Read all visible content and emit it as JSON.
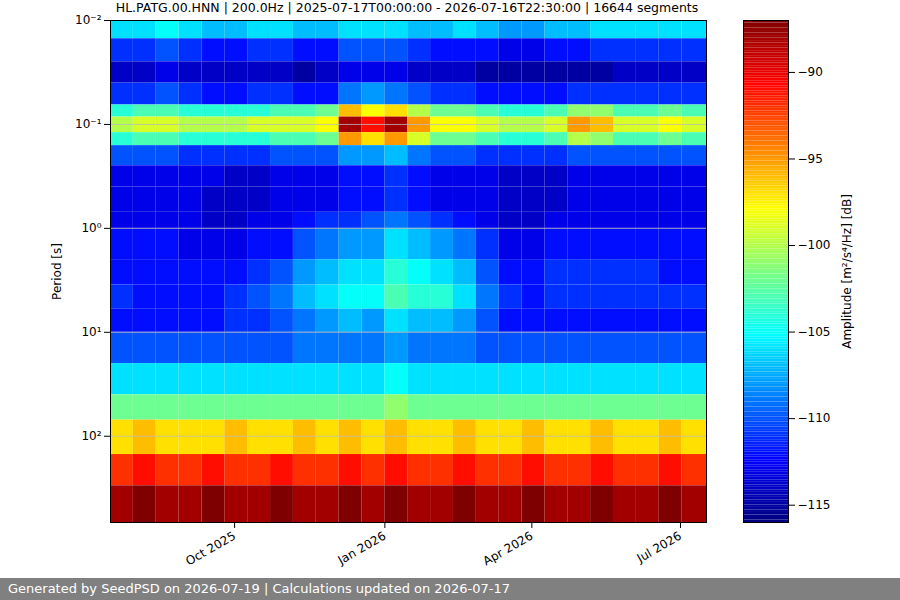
{
  "chart_data": {
    "type": "heatmap",
    "title": "HL.PATG.00.HNN | 200.0Hz | 2025-07-17T00:00:00 - 2026-07-16T22:30:00 | 16644 segments",
    "caption": "Generated by SeedPSD on 2026-07-19 | Calculations updated on 2026-07-17",
    "y_label": "Period [s]",
    "log": "y",
    "grid": "y",
    "xlim": [
      "2025-07-17T00:00:00",
      "2026-07-16T22:30:00"
    ],
    "xticks": [
      {
        "value": "2025-10-01",
        "label": "Oct 2025"
      },
      {
        "value": "2026-01-01",
        "label": "Jan 2026"
      },
      {
        "value": "2026-04-01",
        "label": "Apr 2026"
      },
      {
        "value": "2026-07-01",
        "label": "Jul 2026"
      }
    ],
    "ylim": [
      0.01,
      676
    ],
    "yticks": [
      {
        "value": 0.01,
        "label": "10⁻²"
      },
      {
        "value": 0.1,
        "label": "10⁻¹"
      },
      {
        "value": 1,
        "label": "10⁰"
      },
      {
        "value": 10,
        "label": "10¹"
      },
      {
        "value": 100,
        "label": "10²"
      }
    ],
    "x_bins": [
      "2025-07-17T00:00:00",
      "2025-07-31T00:00:00",
      "2025-08-14T00:00:00",
      "2025-08-28T00:00:00",
      "2025-09-11T00:00:00",
      "2025-09-25T00:00:00",
      "2025-10-09T00:00:00",
      "2025-10-23T00:00:00",
      "2025-11-06T00:00:00",
      "2025-11-20T00:00:00",
      "2025-12-04T00:00:00",
      "2025-12-18T00:00:00",
      "2026-01-01T00:00:00",
      "2026-01-15T00:00:00",
      "2026-01-29T00:00:00",
      "2026-02-12T00:00:00",
      "2026-02-26T00:00:00",
      "2026-03-12T00:00:00",
      "2026-03-26T00:00:00",
      "2026-04-09T00:00:00",
      "2026-04-23T00:00:00",
      "2026-05-07T00:00:00",
      "2026-05-21T00:00:00",
      "2026-06-04T00:00:00",
      "2026-06-18T00:00:00",
      "2026-07-02T00:00:00",
      "2026-07-16T22:30:00"
    ],
    "y_bins": [
      0.01,
      0.015,
      0.025,
      0.04,
      0.065,
      0.085,
      0.12,
      0.16,
      0.25,
      0.4,
      0.7,
      1,
      2,
      3.5,
      6,
      10,
      20,
      40,
      70,
      150,
      300,
      676
    ],
    "values": [
      [
        -106,
        -106,
        -105,
        -106,
        -107,
        -107,
        -106,
        -106,
        -107,
        -107,
        -106,
        -106,
        -106,
        -107,
        -107,
        -106,
        -107,
        -108,
        -108,
        -107,
        -107,
        -106,
        -106,
        -106,
        -106,
        -106
      ],
      [
        -111,
        -111,
        -110,
        -111,
        -112,
        -112,
        -111,
        -111,
        -112,
        -112,
        -110,
        -110,
        -110,
        -111,
        -112,
        -112,
        -112,
        -113,
        -113,
        -112,
        -112,
        -111,
        -111,
        -111,
        -111,
        -111
      ],
      [
        -114,
        -114,
        -113,
        -114,
        -114,
        -114,
        -114,
        -114,
        -115,
        -114,
        -113,
        -113,
        -113,
        -114,
        -114,
        -114,
        -115,
        -115,
        -115,
        -115,
        -115,
        -115,
        -114,
        -114,
        -114,
        -114
      ],
      [
        -111,
        -111,
        -110,
        -111,
        -112,
        -112,
        -111,
        -111,
        -112,
        -112,
        -109,
        -108,
        -109,
        -110,
        -111,
        -111,
        -112,
        -112,
        -112,
        -112,
        -111,
        -111,
        -111,
        -111,
        -111,
        -111
      ],
      [
        -104,
        -103,
        -103,
        -104,
        -104,
        -104,
        -104,
        -103,
        -103,
        -102,
        -96,
        -98,
        -97,
        -100,
        -102,
        -102,
        -103,
        -104,
        -104,
        -103,
        -101,
        -101,
        -103,
        -103,
        -102,
        -103
      ],
      [
        -100,
        -99,
        -99,
        -100,
        -100,
        -100,
        -99,
        -99,
        -99,
        -98,
        -88,
        -91,
        -88,
        -95,
        -98,
        -98,
        -99,
        -100,
        -100,
        -99,
        -95,
        -96,
        -99,
        -99,
        -98,
        -99
      ],
      [
        -104,
        -103,
        -103,
        -104,
        -104,
        -104,
        -104,
        -103,
        -103,
        -102,
        -95,
        -97,
        -95,
        -99,
        -102,
        -102,
        -103,
        -104,
        -104,
        -103,
        -100,
        -101,
        -103,
        -103,
        -102,
        -103
      ],
      [
        -110,
        -110,
        -110,
        -111,
        -111,
        -111,
        -111,
        -110,
        -110,
        -110,
        -108,
        -108,
        -107,
        -109,
        -110,
        -110,
        -111,
        -111,
        -111,
        -111,
        -110,
        -110,
        -110,
        -110,
        -110,
        -110
      ],
      [
        -113,
        -113,
        -113,
        -113,
        -113,
        -114,
        -114,
        -113,
        -113,
        -113,
        -112,
        -112,
        -111,
        -112,
        -113,
        -113,
        -113,
        -114,
        -114,
        -114,
        -113,
        -113,
        -113,
        -113,
        -113,
        -113
      ],
      [
        -113,
        -113,
        -113,
        -113,
        -114,
        -114,
        -114,
        -113,
        -113,
        -113,
        -112,
        -112,
        -111,
        -112,
        -113,
        -113,
        -113,
        -114,
        -114,
        -114,
        -113,
        -113,
        -113,
        -113,
        -113,
        -113
      ],
      [
        -113,
        -113,
        -113,
        -113,
        -114,
        -114,
        -113,
        -113,
        -112,
        -111,
        -111,
        -110,
        -109,
        -110,
        -111,
        -112,
        -113,
        -114,
        -114,
        -113,
        -113,
        -113,
        -113,
        -113,
        -113,
        -113
      ],
      [
        -112,
        -112,
        -112,
        -113,
        -113,
        -113,
        -112,
        -112,
        -110,
        -109,
        -108,
        -108,
        -106,
        -107,
        -108,
        -109,
        -111,
        -113,
        -113,
        -112,
        -112,
        -112,
        -112,
        -112,
        -112,
        -112
      ],
      [
        -112,
        -112,
        -112,
        -112,
        -112,
        -112,
        -111,
        -110,
        -108,
        -107,
        -106,
        -106,
        -104,
        -105,
        -106,
        -107,
        -110,
        -112,
        -112,
        -111,
        -111,
        -111,
        -111,
        -111,
        -112,
        -112
      ],
      [
        -111,
        -112,
        -112,
        -112,
        -112,
        -111,
        -110,
        -109,
        -107,
        -106,
        -105,
        -105,
        -103,
        -104,
        -104,
        -106,
        -109,
        -111,
        -112,
        -111,
        -111,
        -111,
        -111,
        -111,
        -111,
        -111
      ],
      [
        -112,
        -112,
        -112,
        -112,
        -112,
        -111,
        -111,
        -110,
        -109,
        -108,
        -107,
        -108,
        -106,
        -107,
        -107,
        -108,
        -110,
        -112,
        -112,
        -112,
        -112,
        -112,
        -112,
        -112,
        -112,
        -112
      ],
      [
        -110,
        -110,
        -110,
        -110,
        -110,
        -110,
        -110,
        -110,
        -109,
        -109,
        -109,
        -109,
        -108,
        -109,
        -109,
        -109,
        -110,
        -110,
        -110,
        -110,
        -110,
        -110,
        -110,
        -110,
        -110,
        -110
      ],
      [
        -106,
        -106,
        -106,
        -106,
        -106,
        -106,
        -106,
        -106,
        -106,
        -106,
        -106,
        -106,
        -105,
        -106,
        -106,
        -106,
        -106,
        -106,
        -106,
        -106,
        -106,
        -106,
        -106,
        -106,
        -106,
        -106
      ],
      [
        -102,
        -102,
        -102,
        -102,
        -102,
        -102,
        -102,
        -102,
        -102,
        -102,
        -102,
        -102,
        -101,
        -102,
        -102,
        -102,
        -102,
        -102,
        -102,
        -102,
        -102,
        -102,
        -102,
        -102,
        -102,
        -102
      ],
      [
        -97,
        -96,
        -97,
        -97,
        -97,
        -96,
        -97,
        -97,
        -96,
        -97,
        -96,
        -97,
        -96,
        -97,
        -97,
        -96,
        -97,
        -97,
        -96,
        -97,
        -97,
        -96,
        -97,
        -97,
        -96,
        -97
      ],
      [
        -92,
        -91,
        -92,
        -92,
        -91,
        -92,
        -92,
        -91,
        -92,
        -92,
        -91,
        -92,
        -91,
        -92,
        -92,
        -91,
        -92,
        -92,
        -91,
        -92,
        -92,
        -91,
        -92,
        -92,
        -91,
        -92
      ],
      [
        -88,
        -87,
        -88,
        -88,
        -87,
        -88,
        -88,
        -87,
        -88,
        -88,
        -87,
        -88,
        -87,
        -88,
        -88,
        -87,
        -88,
        -88,
        -87,
        -88,
        -88,
        -87,
        -88,
        -88,
        -87,
        -88
      ]
    ],
    "colorbar": {
      "label": "Amplitude [m²/s⁴/Hz] [dB]",
      "clim": [
        -116,
        -87
      ],
      "ticks": [
        {
          "value": -90,
          "label": "−90"
        },
        {
          "value": -95,
          "label": "−95"
        },
        {
          "value": -100,
          "label": "−100"
        },
        {
          "value": -105,
          "label": "−105"
        },
        {
          "value": -110,
          "label": "−110"
        },
        {
          "value": -115,
          "label": "−115"
        }
      ]
    }
  }
}
